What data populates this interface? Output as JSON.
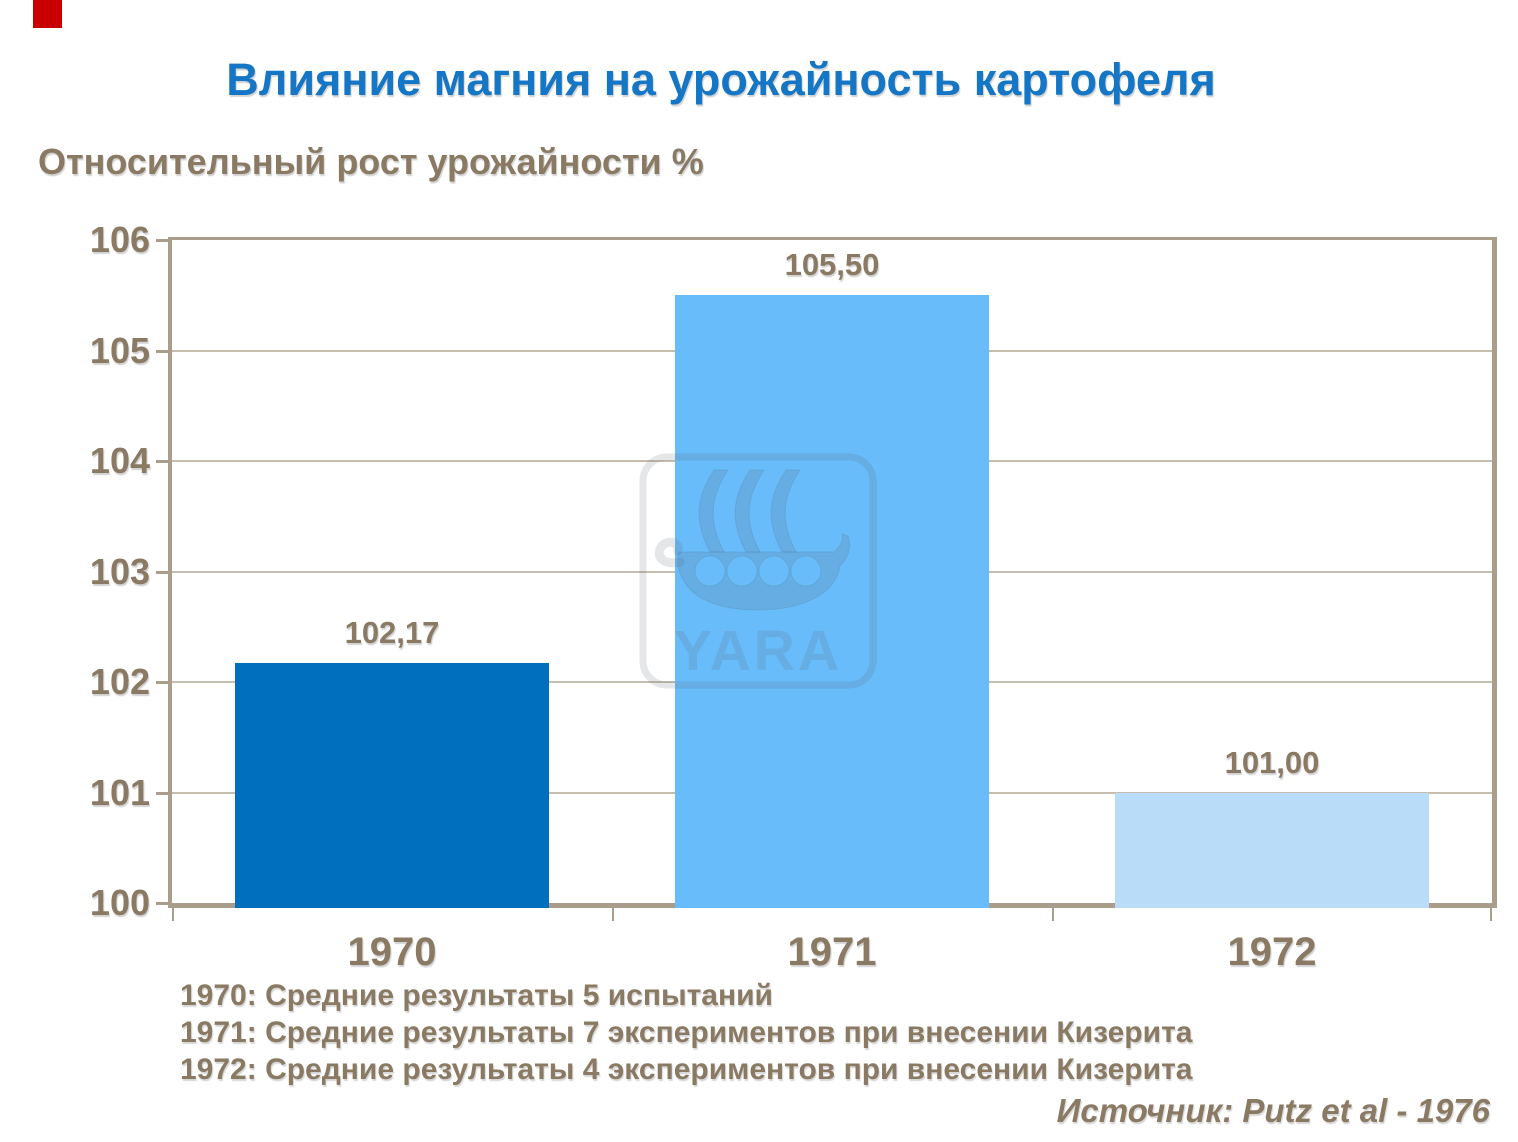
{
  "title": {
    "text": "Влияние магния на урожайность картофеля",
    "color": "#1476C4"
  },
  "chart_data": {
    "type": "bar",
    "title": "Влияние магния на урожайность картофеля",
    "ylabel": "Относительный рост урожайности %",
    "xlabel": "",
    "categories": [
      "1970",
      "1971",
      "1972"
    ],
    "values": [
      102.17,
      105.5,
      101.0
    ],
    "value_labels": [
      "102,17",
      "105,50",
      "101,00"
    ],
    "bar_colors": [
      "#0070BE",
      "#68BCF9",
      "#B9DCF9"
    ],
    "ylim": [
      100,
      106
    ],
    "yticks": [
      100,
      101,
      102,
      103,
      104,
      105,
      106
    ],
    "grid": true,
    "legend": "none"
  },
  "watermark": {
    "brand": "YARA",
    "icon": "viking-ship-logo"
  },
  "footnotes": [
    "1970: Средние результаты 5 испытаний",
    "1971: Средние результаты 7 экспериментов при внесении Кизерита",
    "1972: Средние результаты 4 экспериментов при внесении Кизерита"
  ],
  "source": "Источник: Putz et al - 1976",
  "colors": {
    "accent_red": "#C80000",
    "title_blue": "#1476C4",
    "text_brown": "#8A7963",
    "axis": "#AB9D8B",
    "grid": "#C7BDAE",
    "watermark": "rgba(90,100,110,0.16)"
  }
}
